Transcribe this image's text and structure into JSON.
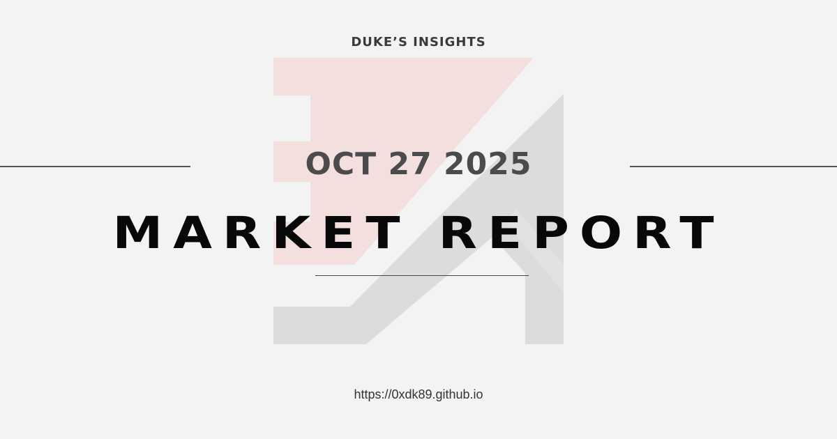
{
  "brand": "DUKE’S INSIGHTS",
  "date": "OCT 27 2025",
  "title": "MARKET REPORT",
  "url": "https://0xdk89.github.io",
  "logo": {
    "icon": "duke-monogram-logo",
    "colors": {
      "accent_pink": "#f2dfde",
      "accent_gray": "#dcdcdc"
    }
  },
  "colors": {
    "background": "#f3f3f3",
    "title_text": "#080808",
    "date_text": "#4b4b4b",
    "rule": "#555555"
  }
}
